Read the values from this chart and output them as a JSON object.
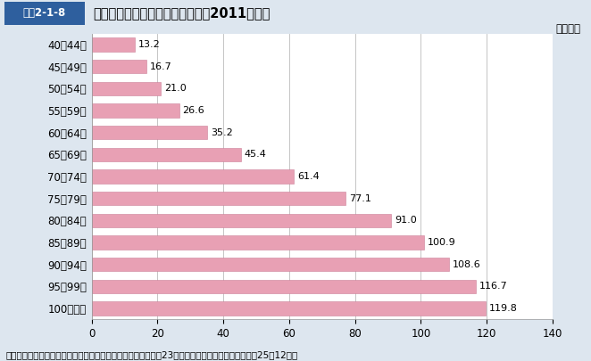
{
  "header_label": "図表2-1-8",
  "header_title": "年齢階級別の１人当たり医療費（2011年度）",
  "categories": [
    "40～44歳",
    "45～49歳",
    "50～54歳",
    "55～59歳",
    "60～64歳",
    "65～69歳",
    "70～74歳",
    "75～79歳",
    "80～84歳",
    "85～89歳",
    "90～94歳",
    "95～99歳",
    "100歳以上"
  ],
  "values": [
    13.2,
    16.7,
    21.0,
    26.6,
    35.2,
    45.4,
    61.4,
    77.1,
    91.0,
    100.9,
    108.6,
    116.7,
    119.8
  ],
  "bar_color": "#E8A0B4",
  "bar_edgecolor": "#CC8099",
  "xlim": [
    0,
    140
  ],
  "xticks": [
    0,
    20,
    40,
    60,
    80,
    100,
    120,
    140
  ],
  "xlabel": "（万円）",
  "caption": "資料：厚生労働省保険局「医療保険に関する基礎資料　～平成23年度の医療費等の状況～」（平成25年12月）",
  "background_color": "#DDE6EF",
  "plot_background_color": "#FFFFFF",
  "header_bg_color": "#2E5F9E",
  "header_text_color": "#FFFFFF",
  "grid_color": "#BBBBBB",
  "value_fontsize": 8,
  "label_fontsize": 8.5,
  "caption_fontsize": 7.5,
  "title_fontsize": 10.5
}
